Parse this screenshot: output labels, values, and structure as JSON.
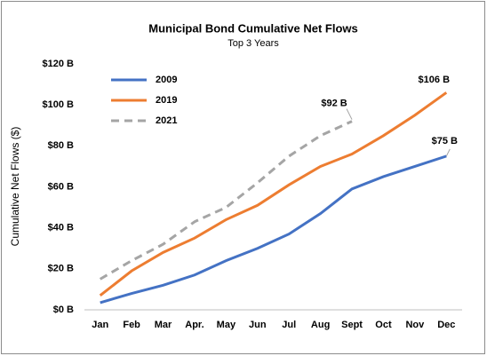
{
  "chart_data": {
    "type": "line",
    "title": "Municipal Bond Cumulative Net Flows",
    "subtitle": "Top 3 Years",
    "y_label": "Cumulative Net Flows ($)",
    "categories": [
      "Jan",
      "Feb",
      "Mar",
      "Apr.",
      "May",
      "Jun",
      "Jul",
      "Aug",
      "Sept",
      "Oct",
      "Nov",
      "Dec"
    ],
    "series": [
      {
        "name": "2009",
        "color": "#4472c4",
        "dashed": false,
        "values": [
          3.5,
          8,
          12,
          17,
          24,
          30,
          37,
          47,
          59,
          65,
          70,
          75
        ],
        "value_labels": [
          null,
          null,
          null,
          null,
          null,
          null,
          null,
          null,
          null,
          null,
          null,
          "$75 B"
        ]
      },
      {
        "name": "2019",
        "color": "#ed7d31",
        "dashed": false,
        "values": [
          7,
          19,
          28,
          35,
          44,
          51,
          61,
          70,
          76,
          85,
          95,
          106
        ],
        "value_labels": [
          null,
          null,
          null,
          null,
          null,
          null,
          null,
          null,
          null,
          null,
          null,
          "$106 B"
        ]
      },
      {
        "name": "2021",
        "color": "#a5a5a5",
        "dashed": true,
        "values": [
          15,
          24,
          32,
          43,
          50,
          62,
          75,
          85,
          92,
          null,
          null,
          null
        ],
        "value_labels": [
          null,
          null,
          null,
          null,
          null,
          null,
          null,
          null,
          "$92 B",
          null,
          null,
          null
        ]
      }
    ],
    "ylim": [
      0,
      120
    ],
    "yticks": [
      {
        "value": 0,
        "label": "$0 B"
      },
      {
        "value": 20,
        "label": "$20 B"
      },
      {
        "value": 40,
        "label": "$40 B"
      },
      {
        "value": 60,
        "label": "$60 B"
      },
      {
        "value": 80,
        "label": "$80 B"
      },
      {
        "value": 100,
        "label": "$100 B"
      },
      {
        "value": 120,
        "label": "$120 B"
      }
    ],
    "legend": "top-left",
    "grid": false
  }
}
